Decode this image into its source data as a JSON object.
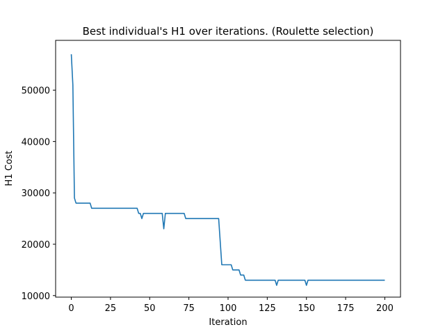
{
  "chart_data": {
    "type": "line",
    "title": "Best individual's H1 over iterations. (Roulette selection)",
    "xlabel": "Iteration",
    "ylabel": "H1 Cost",
    "xlim": [
      -10,
      210
    ],
    "ylim": [
      9700,
      59700
    ],
    "xticks": [
      0,
      25,
      50,
      75,
      100,
      125,
      150,
      175,
      200
    ],
    "yticks": [
      10000,
      20000,
      30000,
      40000,
      50000
    ],
    "grid": false,
    "legend": "none",
    "color": "#1f77b4",
    "series": [
      {
        "x": [
          0,
          1,
          2,
          3,
          4,
          12,
          13,
          42,
          43,
          44,
          45,
          46,
          58,
          59,
          60,
          72,
          73,
          94,
          96,
          102,
          103,
          107,
          108,
          110,
          111,
          130,
          131,
          132,
          149,
          150,
          151,
          200
        ],
        "y": [
          57000,
          51000,
          29000,
          28000,
          28000,
          28000,
          27000,
          27000,
          26000,
          26000,
          25000,
          26000,
          26000,
          23000,
          26000,
          26000,
          25000,
          25000,
          16000,
          16000,
          15000,
          15000,
          14000,
          14000,
          13000,
          13000,
          12000,
          13000,
          13000,
          12000,
          13000,
          13000
        ]
      }
    ]
  }
}
